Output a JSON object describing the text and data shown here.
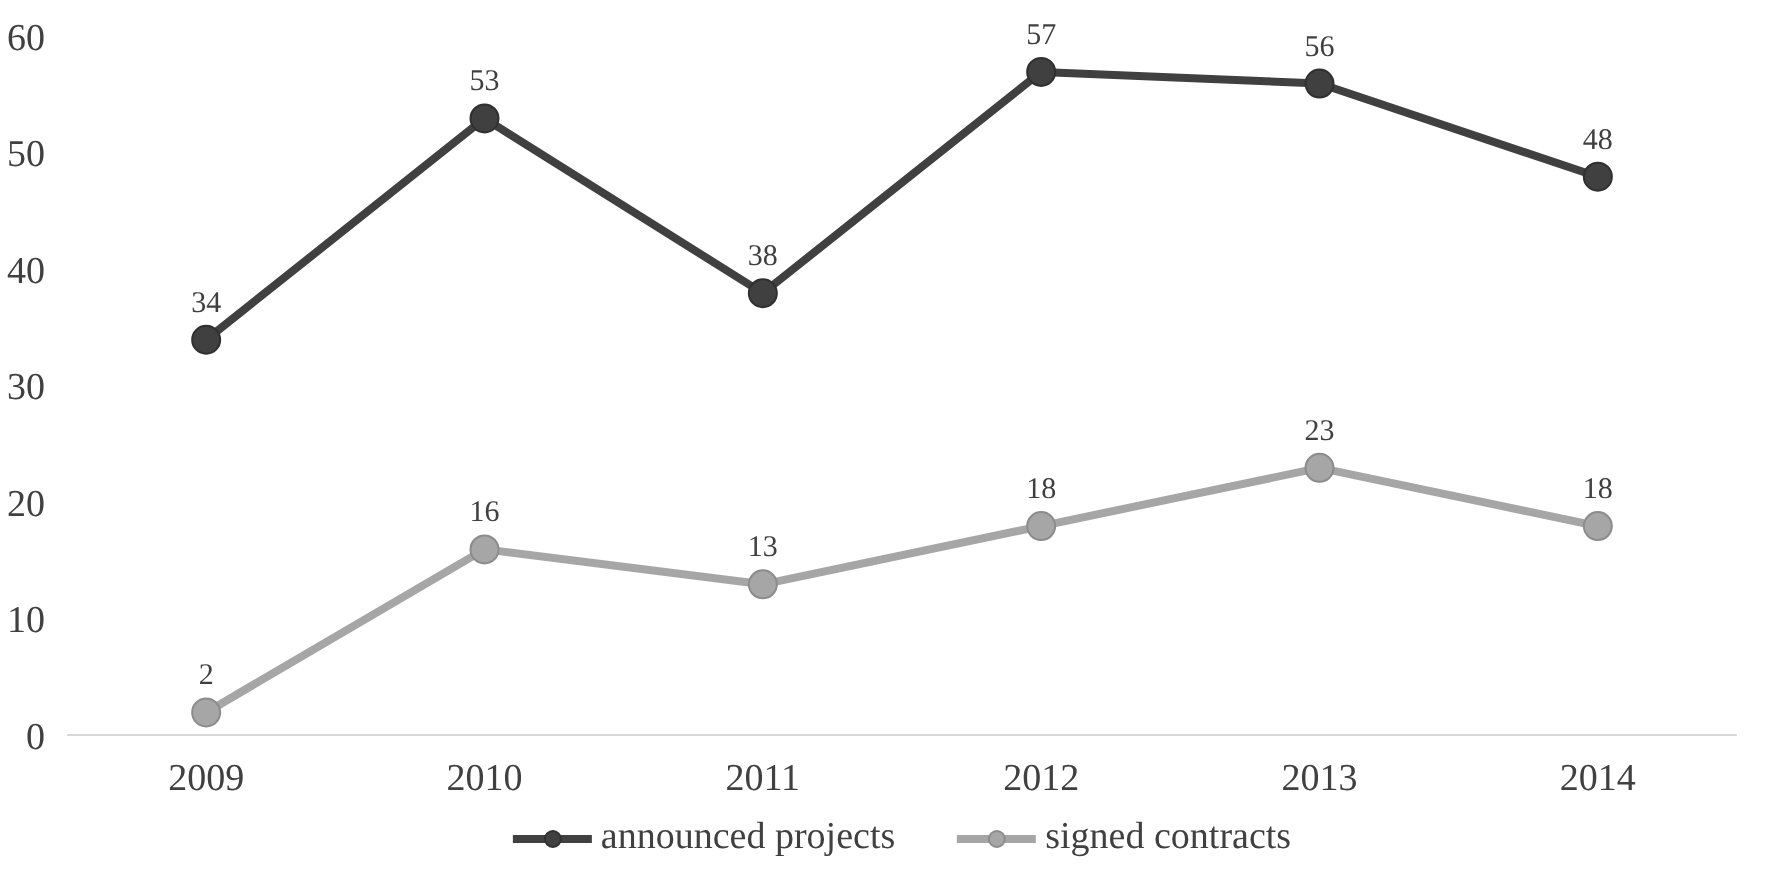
{
  "chart_data": {
    "type": "line",
    "categories": [
      "2009",
      "2010",
      "2011",
      "2012",
      "2013",
      "2014"
    ],
    "series": [
      {
        "name": "announced projects",
        "color": "#404040",
        "values": [
          34,
          53,
          38,
          57,
          56,
          48
        ]
      },
      {
        "name": "signed contracts",
        "color": "#a6a6a6",
        "values": [
          2,
          16,
          13,
          18,
          23,
          18
        ]
      }
    ],
    "ylim": [
      0,
      60
    ],
    "yticks": [
      0,
      10,
      20,
      30,
      40,
      50,
      60
    ],
    "grid": false,
    "legend": "bottom",
    "marker": "circle",
    "line_style": "solid",
    "data_labels": true
  }
}
